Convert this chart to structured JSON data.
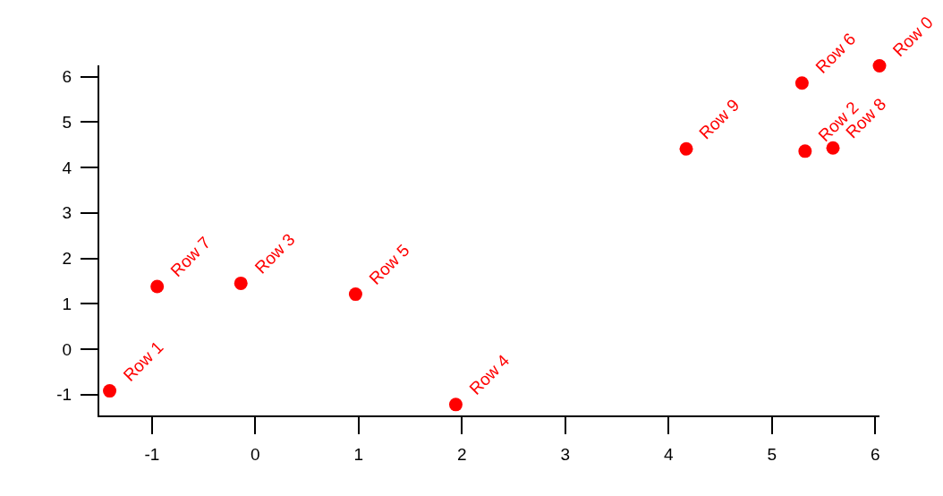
{
  "chart_data": {
    "type": "scatter",
    "xlim": [
      -1.51,
      6.04
    ],
    "ylim": [
      -1.46,
      6.25
    ],
    "xticks": [
      -1,
      0,
      1,
      2,
      3,
      4,
      5,
      6
    ],
    "yticks": [
      -1,
      0,
      1,
      2,
      3,
      4,
      5,
      6
    ],
    "grid": false,
    "marker": "circle",
    "series": [
      {
        "color": "#ff0000",
        "x": [
          6.04,
          -1.41,
          5.32,
          -0.14,
          1.94,
          0.97,
          5.29,
          -0.95,
          5.59,
          4.17
        ],
        "values": [
          6.24,
          -0.92,
          4.36,
          1.45,
          -1.22,
          1.21,
          5.86,
          1.38,
          4.43,
          4.41
        ]
      }
    ],
    "annotations": [
      {
        "text": "Row 0",
        "x": 6.04,
        "y": 6.24
      },
      {
        "text": "Row 1",
        "x": -1.41,
        "y": -0.92
      },
      {
        "text": "Row 2",
        "x": 5.32,
        "y": 4.36
      },
      {
        "text": "Row 3",
        "x": -0.14,
        "y": 1.45
      },
      {
        "text": "Row 4",
        "x": 1.94,
        "y": -1.22
      },
      {
        "text": "Row 5",
        "x": 0.97,
        "y": 1.21
      },
      {
        "text": "Row 6",
        "x": 5.29,
        "y": 5.86
      },
      {
        "text": "Row 7",
        "x": -0.95,
        "y": 1.38
      },
      {
        "text": "Row 8",
        "x": 5.59,
        "y": 4.43
      },
      {
        "text": "Row 9",
        "x": 4.17,
        "y": 4.41
      }
    ]
  }
}
